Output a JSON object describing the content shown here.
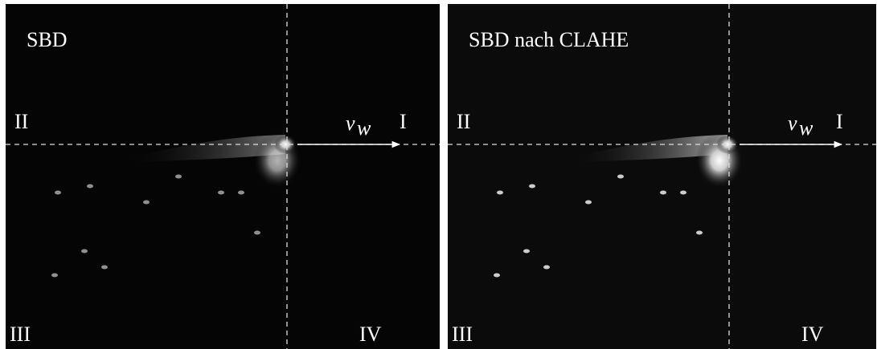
{
  "panels": [
    {
      "title": "SBD",
      "quadrants": {
        "I": "I",
        "II": "II",
        "III": "III",
        "IV": "IV"
      },
      "velocity": {
        "symbol": "v",
        "subscript": "w"
      }
    },
    {
      "title": "SBD nach CLAHE",
      "quadrants": {
        "I": "I",
        "II": "II",
        "III": "III",
        "IV": "IV"
      },
      "velocity": {
        "symbol": "v",
        "subscript": "w"
      }
    }
  ]
}
